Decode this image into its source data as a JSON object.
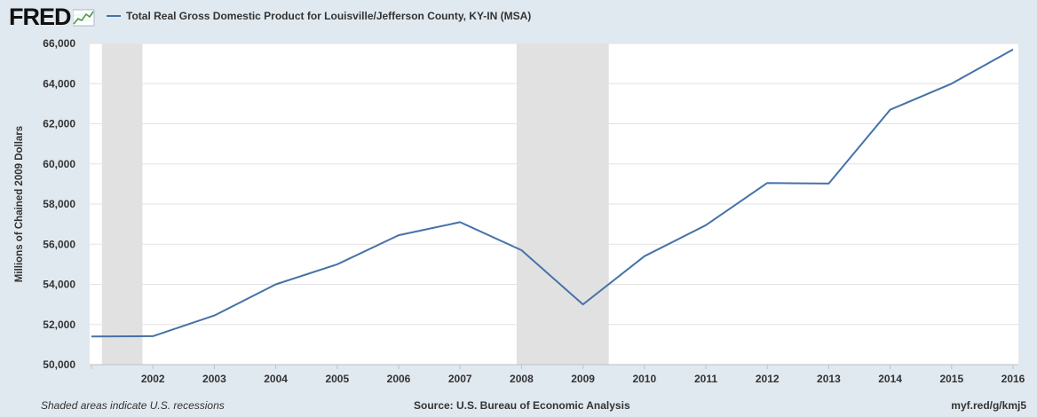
{
  "header": {
    "logo_text": "FRED",
    "legend_label": "Total Real Gross Domestic Product for Louisville/Jefferson County, KY-IN (MSA)"
  },
  "footer": {
    "note": "Shaded areas indicate U.S. recessions",
    "source": "Source: U.S. Bureau of Economic Analysis",
    "link": "myf.red/g/kmj5"
  },
  "colors": {
    "series": "#4572a7",
    "recession": "#e1e1e1",
    "background": "#e1e9f0",
    "plot": "#ffffff"
  },
  "chart_data": {
    "type": "line",
    "title": "",
    "xlabel": "",
    "ylabel": "Millions of Chained 2009 Dollars",
    "ylim": [
      50000,
      66000
    ],
    "xlim": [
      2001,
      2016
    ],
    "grid": true,
    "legend_position": "top-left",
    "x_ticks": [
      2002,
      2003,
      2004,
      2005,
      2006,
      2007,
      2008,
      2009,
      2010,
      2011,
      2012,
      2013,
      2014,
      2015,
      2016
    ],
    "y_ticks": [
      50000,
      52000,
      54000,
      56000,
      58000,
      60000,
      62000,
      64000,
      66000
    ],
    "y_tick_labels": [
      "50,000",
      "52,000",
      "54,000",
      "56,000",
      "58,000",
      "60,000",
      "62,000",
      "64,000",
      "66,000"
    ],
    "recessions": [
      {
        "start": 2001.17,
        "end": 2001.83
      },
      {
        "start": 2007.92,
        "end": 2009.42
      }
    ],
    "series": [
      {
        "name": "Total Real Gross Domestic Product for Louisville/Jefferson County, KY-IN (MSA)",
        "x": [
          2001,
          2002,
          2003,
          2004,
          2005,
          2006,
          2007,
          2008,
          2009,
          2010,
          2011,
          2012,
          2013,
          2014,
          2015,
          2016
        ],
        "values": [
          51400,
          51420,
          52450,
          54000,
          55000,
          56450,
          57100,
          55700,
          53000,
          55400,
          56950,
          59050,
          59020,
          62700,
          64000,
          65700
        ]
      }
    ]
  }
}
